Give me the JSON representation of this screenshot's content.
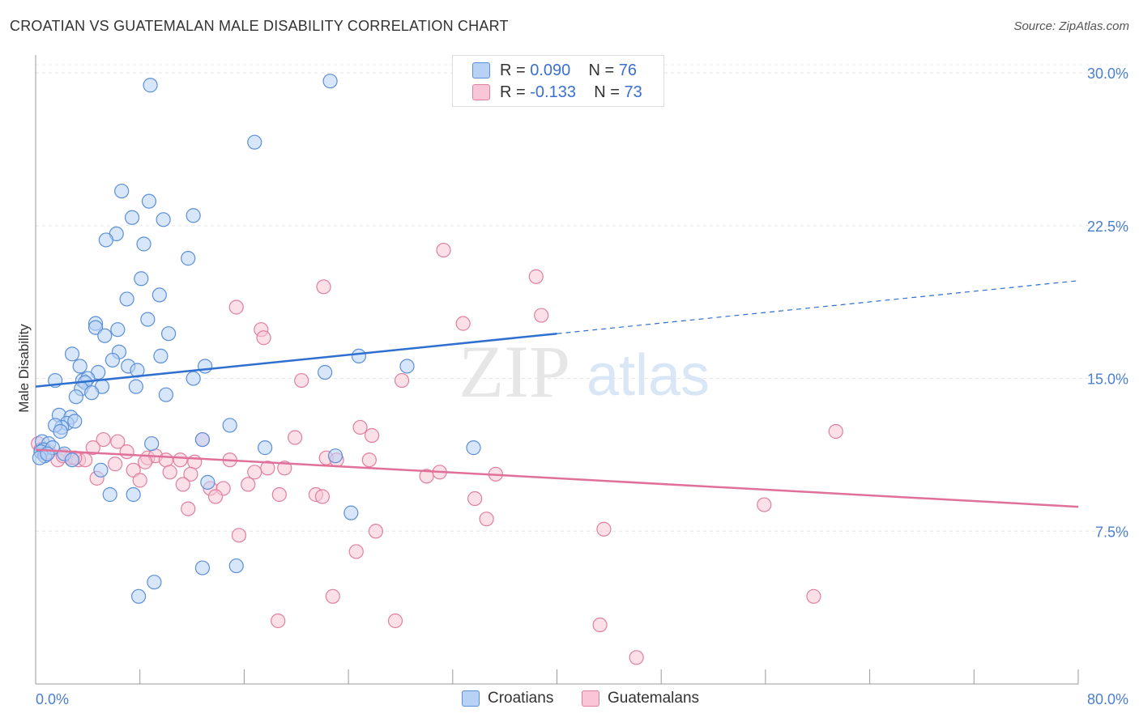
{
  "title": "CROATIAN VS GUATEMALAN MALE DISABILITY CORRELATION CHART",
  "source": "Source: ZipAtlas.com",
  "watermark": {
    "zip": "ZIP",
    "atlas": "atlas"
  },
  "legend": {
    "rows": [
      {
        "r_label": "R =",
        "r_value": "0.090",
        "n_label": "N =",
        "n_value": "76"
      },
      {
        "r_label": "R =",
        "r_value": "-0.133",
        "n_label": "N =",
        "n_value": "73"
      }
    ]
  },
  "bottom_legend": [
    "Croatians",
    "Guatemalans"
  ],
  "colors": {
    "croatians_fill": "#b8d2f5",
    "croatians_stroke": "#5b8fd8",
    "croatians_line": "#2f6fd0",
    "guatemalans_fill": "#f8c6d6",
    "guatemalans_stroke": "#e07fa0",
    "guatemalans_line": "#e0709a",
    "tick_text": "#4a7fd0"
  },
  "chart_data": {
    "type": "scatter",
    "title": "CROATIAN VS GUATEMALAN MALE DISABILITY CORRELATION CHART",
    "xlabel": "",
    "ylabel": "Male Disability",
    "xlim": [
      0,
      80
    ],
    "ylim": [
      0,
      30.8
    ],
    "x_tick_labels": [
      "0.0%",
      "80.0%"
    ],
    "y_ticks": [
      7.5,
      15.0,
      22.5,
      30.0
    ],
    "y_tick_labels": [
      "7.5%",
      "15.0%",
      "22.5%",
      "30.0%"
    ],
    "grid": "horizontal dashed",
    "legend_position": "top-center",
    "series": [
      {
        "name": "Croatians",
        "r": 0.09,
        "n": 76,
        "trend": {
          "x0": 0,
          "y0": 14.6,
          "x1": 40,
          "y1": 17.2,
          "dashed_to_x": 80,
          "dashed_to_y": 19.8
        },
        "points": [
          [
            8.8,
            29.4
          ],
          [
            22.6,
            29.6
          ],
          [
            16.8,
            26.6
          ],
          [
            6.6,
            24.2
          ],
          [
            8.7,
            23.7
          ],
          [
            7.4,
            22.9
          ],
          [
            9.8,
            22.8
          ],
          [
            12.1,
            23.0
          ],
          [
            6.2,
            22.1
          ],
          [
            5.4,
            21.8
          ],
          [
            8.3,
            21.6
          ],
          [
            11.7,
            20.9
          ],
          [
            8.1,
            19.9
          ],
          [
            7.0,
            18.9
          ],
          [
            9.5,
            19.1
          ],
          [
            8.6,
            17.9
          ],
          [
            4.6,
            17.7
          ],
          [
            4.6,
            17.5
          ],
          [
            6.3,
            17.4
          ],
          [
            10.2,
            17.2
          ],
          [
            5.3,
            17.1
          ],
          [
            2.8,
            16.2
          ],
          [
            6.4,
            16.3
          ],
          [
            9.6,
            16.1
          ],
          [
            13.0,
            15.6
          ],
          [
            5.9,
            15.9
          ],
          [
            7.1,
            15.6
          ],
          [
            7.8,
            15.4
          ],
          [
            4.8,
            15.3
          ],
          [
            3.4,
            15.6
          ],
          [
            24.8,
            16.1
          ],
          [
            28.5,
            15.6
          ],
          [
            22.2,
            15.3
          ],
          [
            1.5,
            14.9
          ],
          [
            3.6,
            14.9
          ],
          [
            4.0,
            15.0
          ],
          [
            3.8,
            14.8
          ],
          [
            3.5,
            14.5
          ],
          [
            5.1,
            14.6
          ],
          [
            7.7,
            14.6
          ],
          [
            4.3,
            14.3
          ],
          [
            10.0,
            14.2
          ],
          [
            3.1,
            14.1
          ],
          [
            12.1,
            15.0
          ],
          [
            1.8,
            13.2
          ],
          [
            2.7,
            13.1
          ],
          [
            2.4,
            12.8
          ],
          [
            2.0,
            12.6
          ],
          [
            3.0,
            12.9
          ],
          [
            1.5,
            12.7
          ],
          [
            1.9,
            12.4
          ],
          [
            14.9,
            12.7
          ],
          [
            0.5,
            11.9
          ],
          [
            1.0,
            11.8
          ],
          [
            0.6,
            11.5
          ],
          [
            0.4,
            11.4
          ],
          [
            0.7,
            11.2
          ],
          [
            0.3,
            11.1
          ],
          [
            1.3,
            11.6
          ],
          [
            0.9,
            11.3
          ],
          [
            2.2,
            11.3
          ],
          [
            8.9,
            11.8
          ],
          [
            12.8,
            12.0
          ],
          [
            17.6,
            11.6
          ],
          [
            23.0,
            11.2
          ],
          [
            33.6,
            11.6
          ],
          [
            5.0,
            10.5
          ],
          [
            13.2,
            9.9
          ],
          [
            5.7,
            9.3
          ],
          [
            7.5,
            9.3
          ],
          [
            24.2,
            8.4
          ],
          [
            12.8,
            5.7
          ],
          [
            15.4,
            5.8
          ],
          [
            9.1,
            5.0
          ],
          [
            7.9,
            4.3
          ],
          [
            2.8,
            11.0
          ]
        ]
      },
      {
        "name": "Guatemalans",
        "r": -0.133,
        "n": 73,
        "trend": {
          "x0": 0,
          "y0": 11.5,
          "x1": 80,
          "y1": 8.7
        },
        "points": [
          [
            31.3,
            21.3
          ],
          [
            38.4,
            20.0
          ],
          [
            22.1,
            19.5
          ],
          [
            38.8,
            18.1
          ],
          [
            15.4,
            18.5
          ],
          [
            32.8,
            17.7
          ],
          [
            17.3,
            17.4
          ],
          [
            17.5,
            17.0
          ],
          [
            20.4,
            14.9
          ],
          [
            28.1,
            14.9
          ],
          [
            24.9,
            12.6
          ],
          [
            25.8,
            12.2
          ],
          [
            61.4,
            12.4
          ],
          [
            19.9,
            12.1
          ],
          [
            5.2,
            12.0
          ],
          [
            6.3,
            11.9
          ],
          [
            12.8,
            12.0
          ],
          [
            4.4,
            11.6
          ],
          [
            7.0,
            11.4
          ],
          [
            8.6,
            11.1
          ],
          [
            9.2,
            11.2
          ],
          [
            10.0,
            11.0
          ],
          [
            11.1,
            11.0
          ],
          [
            12.2,
            10.9
          ],
          [
            14.9,
            11.0
          ],
          [
            8.4,
            10.9
          ],
          [
            0.8,
            11.3
          ],
          [
            1.7,
            11.0
          ],
          [
            2.7,
            11.1
          ],
          [
            3.3,
            11.0
          ],
          [
            3.8,
            11.0
          ],
          [
            6.1,
            10.8
          ],
          [
            22.3,
            11.1
          ],
          [
            25.6,
            11.0
          ],
          [
            23.1,
            11.0
          ],
          [
            7.5,
            10.5
          ],
          [
            10.3,
            10.4
          ],
          [
            11.9,
            10.3
          ],
          [
            16.8,
            10.4
          ],
          [
            19.1,
            10.6
          ],
          [
            17.8,
            10.6
          ],
          [
            8.0,
            10.0
          ],
          [
            11.3,
            9.8
          ],
          [
            13.4,
            9.6
          ],
          [
            14.4,
            9.6
          ],
          [
            16.3,
            9.8
          ],
          [
            4.7,
            10.1
          ],
          [
            30.0,
            10.2
          ],
          [
            31.0,
            10.4
          ],
          [
            35.3,
            10.3
          ],
          [
            13.8,
            9.2
          ],
          [
            18.7,
            9.3
          ],
          [
            21.5,
            9.3
          ],
          [
            22.0,
            9.2
          ],
          [
            33.7,
            9.1
          ],
          [
            11.7,
            8.6
          ],
          [
            34.6,
            8.1
          ],
          [
            55.9,
            8.8
          ],
          [
            15.6,
            7.3
          ],
          [
            26.1,
            7.5
          ],
          [
            43.6,
            7.6
          ],
          [
            24.6,
            6.5
          ],
          [
            22.8,
            4.3
          ],
          [
            59.7,
            4.3
          ],
          [
            18.6,
            3.1
          ],
          [
            27.6,
            3.1
          ],
          [
            43.3,
            2.9
          ],
          [
            46.1,
            1.3
          ],
          [
            0.2,
            11.8
          ],
          [
            0.4,
            11.5
          ],
          [
            1.0,
            11.4
          ],
          [
            2.1,
            11.2
          ],
          [
            3.0,
            11.1
          ]
        ]
      }
    ]
  }
}
